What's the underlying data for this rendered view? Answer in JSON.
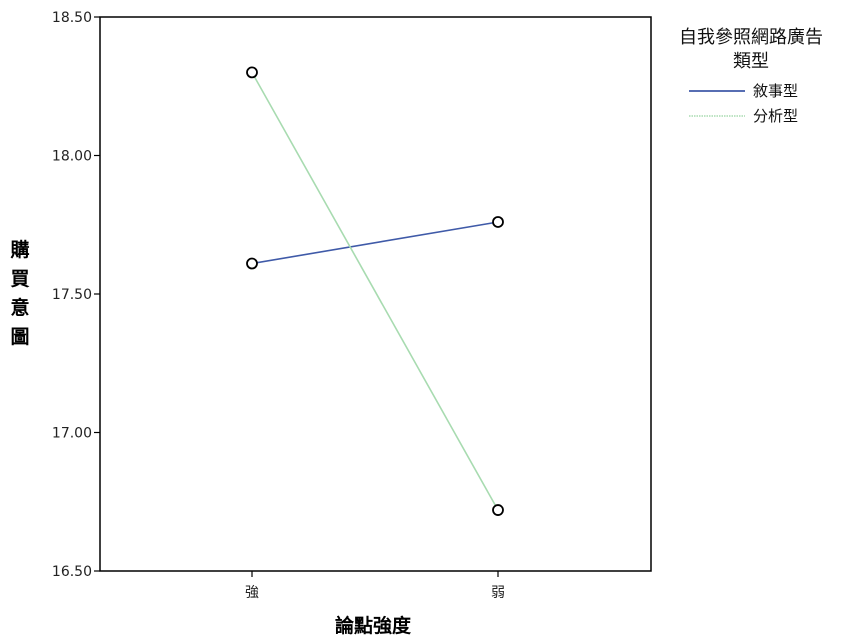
{
  "chart_data": {
    "type": "line",
    "categories": [
      "強",
      "弱"
    ],
    "xlabel": "論點強度",
    "ylabel": "購買意圖",
    "ylim": [
      16.5,
      18.5
    ],
    "yticks": [
      "16.50",
      "17.00",
      "17.50",
      "18.00",
      "18.50"
    ],
    "legend": {
      "title": "自我參照網路廣告類型",
      "position": "right"
    },
    "grid": false,
    "series": [
      {
        "name": "敘事型",
        "values": [
          17.61,
          17.76
        ],
        "color": "#3f5aa8",
        "marker": "circle"
      },
      {
        "name": "分析型",
        "values": [
          18.3,
          16.72
        ],
        "color": "#a8dbb0",
        "marker": "circle"
      }
    ]
  }
}
